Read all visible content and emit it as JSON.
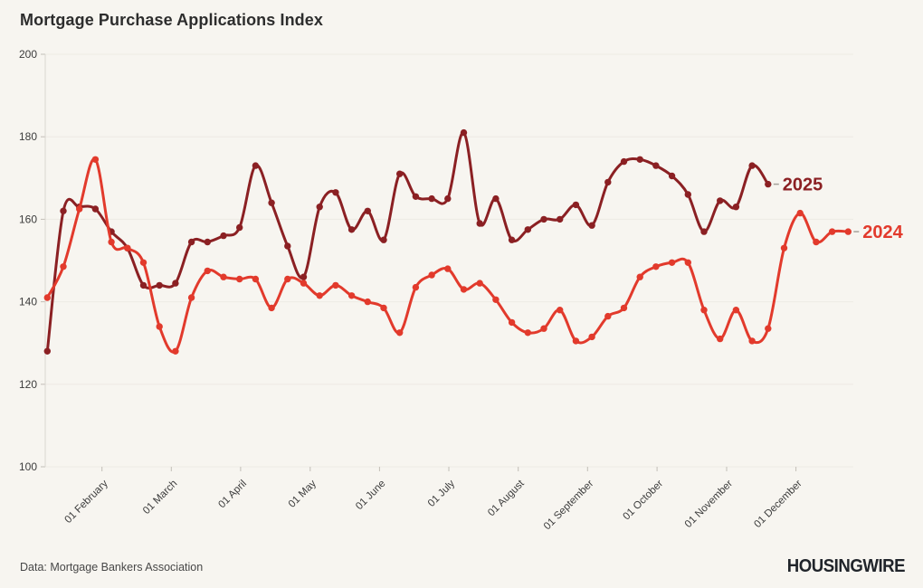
{
  "page": {
    "title": "Mortgage Purchase Applications Index",
    "source_note": "Data: Mortgage Bankers Association",
    "brand": "HOUSINGWIRE",
    "background": "#f7f5f0"
  },
  "chart_data": {
    "type": "line",
    "title": "Mortgage Purchase Applications Index",
    "xlabel": "",
    "ylabel": "",
    "ylim": [
      100,
      200
    ],
    "y_ticks": [
      100,
      120,
      140,
      160,
      180,
      200
    ],
    "grid": "horizontal",
    "legend_position": "line-end-labels",
    "x_unit": "week-of-year",
    "x_ticks": [
      {
        "label": "01 February",
        "week": 4.41
      },
      {
        "label": "01 March",
        "week": 8.74
      },
      {
        "label": "01 April",
        "week": 13.07
      },
      {
        "label": "01 May",
        "week": 17.41
      },
      {
        "label": "01 June",
        "week": 21.74
      },
      {
        "label": "01 July",
        "week": 26.07
      },
      {
        "label": "01 August",
        "week": 30.4
      },
      {
        "label": "01 September",
        "week": 34.73
      },
      {
        "label": "01 October",
        "week": 39.07
      },
      {
        "label": "01 November",
        "week": 43.41
      },
      {
        "label": "01 December",
        "week": 47.74
      }
    ],
    "series": [
      {
        "name": "2025",
        "color": "#8b2023",
        "values": [
          128,
          162,
          163,
          162.5,
          157,
          153,
          144,
          144,
          144.5,
          154.5,
          154.5,
          156,
          158,
          173,
          164,
          153.5,
          146,
          163,
          166.5,
          157.5,
          162,
          155,
          171,
          165.5,
          165,
          165,
          181,
          159,
          165,
          155,
          157.5,
          160,
          160,
          163.5,
          158.5,
          169,
          174,
          174.5,
          173,
          170.5,
          166,
          157,
          164.5,
          163,
          173,
          168.5
        ]
      },
      {
        "name": "2024",
        "color": "#e23a2c",
        "values": [
          141,
          148.5,
          162.5,
          174.5,
          154.5,
          153,
          149.5,
          134,
          128,
          141,
          147.5,
          146,
          145.5,
          145.5,
          138.5,
          145.5,
          144.5,
          141.5,
          144,
          141.5,
          140,
          138.5,
          132.5,
          143.5,
          146.5,
          148,
          143,
          144.5,
          140.5,
          135,
          132.5,
          133.5,
          138,
          130.5,
          131.5,
          136.5,
          138.5,
          146,
          148.5,
          149.5,
          149.5,
          138,
          131,
          138,
          130.5,
          133.5,
          153,
          161.5,
          154.5,
          157,
          157
        ]
      }
    ],
    "style": {
      "gridline_color": "#edeae4",
      "axis_line_color": "#d9d6d0",
      "tick_color": "#c2beb7",
      "tick_label_color": "#3c3c3c",
      "label_dash_color": "#a5a19a"
    }
  }
}
